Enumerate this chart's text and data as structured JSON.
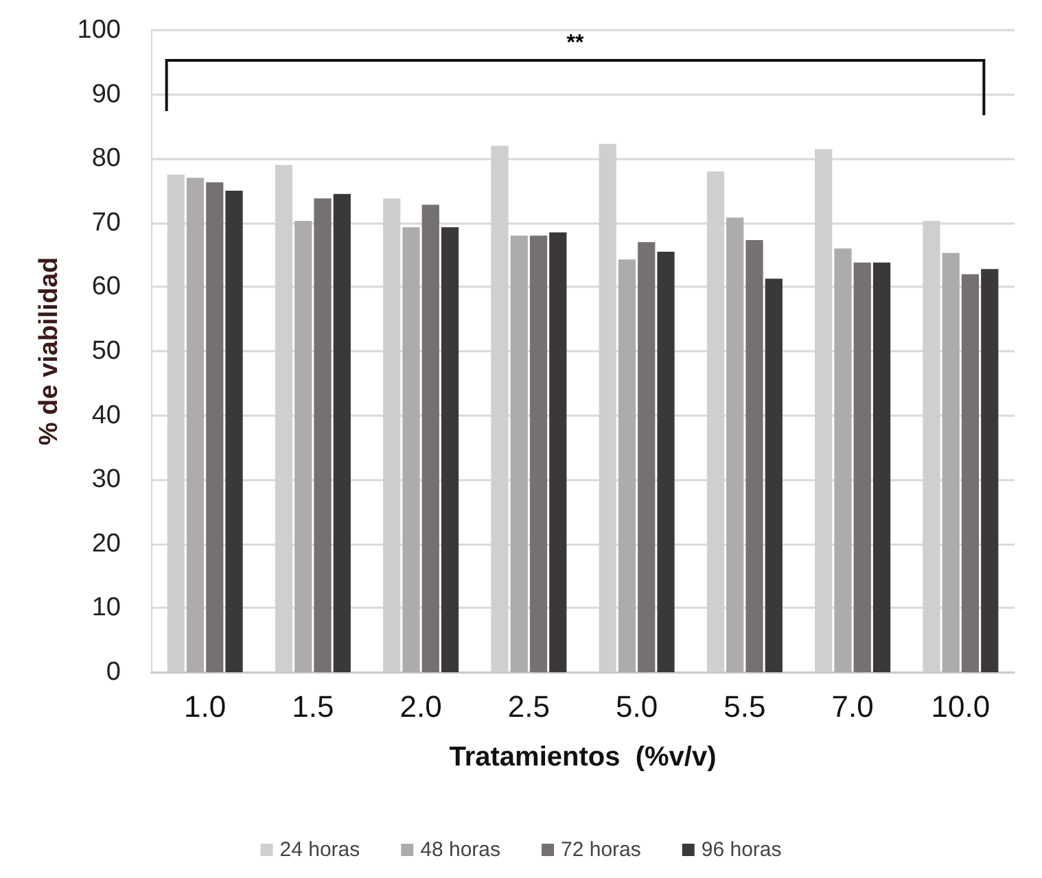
{
  "chart_data": {
    "type": "bar",
    "xlabel": "Tratamientos  (%v/v)",
    "ylabel": "% de viabilidad",
    "categories": [
      "1.0",
      "1.5",
      "2.0",
      "2.5",
      "5.0",
      "5.5",
      "7.0",
      "10.0"
    ],
    "series": [
      {
        "name": "24 horas",
        "color": "#d0cfd0",
        "values": [
          77.5,
          79,
          73.8,
          82,
          82.3,
          78,
          81.5,
          70.3
        ]
      },
      {
        "name": "48 horas",
        "color": "#aeacab",
        "values": [
          77,
          70.3,
          69.3,
          68,
          64.3,
          70.8,
          66,
          65.3
        ]
      },
      {
        "name": "72 horas",
        "color": "#757170",
        "values": [
          76.3,
          73.8,
          72.8,
          68,
          67,
          67.3,
          63.8,
          62
        ]
      },
      {
        "name": "96 horas",
        "color": "#3a3937",
        "values": [
          75,
          74.5,
          69.3,
          68.5,
          65.5,
          61.3,
          63.8,
          62.8
        ]
      }
    ],
    "ylim": [
      0,
      100
    ],
    "yticks": [
      0,
      10,
      20,
      30,
      40,
      50,
      60,
      70,
      80,
      90,
      100
    ],
    "grid": "y",
    "legend": "bottom",
    "annotations": [
      "**"
    ]
  }
}
